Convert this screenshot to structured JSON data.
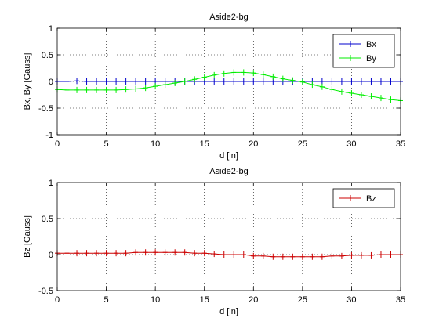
{
  "chart_data": [
    {
      "type": "line",
      "title": "Aside2-bg",
      "xlabel": "d [in]",
      "ylabel": "Bx, By [Gauss]",
      "xlim": [
        0,
        35
      ],
      "ylim": [
        -1,
        1
      ],
      "xticks": [
        0,
        5,
        10,
        15,
        20,
        25,
        30,
        35
      ],
      "yticks": [
        -1,
        -0.5,
        0,
        0.5,
        1
      ],
      "xtick_labels": [
        "0",
        "5",
        "10",
        "15",
        "20",
        "25",
        "30",
        "35"
      ],
      "ytick_labels": [
        "-1",
        "-0.5",
        "0",
        "0.5",
        "1"
      ],
      "grid": true,
      "legend_position": "top-right",
      "x": [
        0,
        1,
        2,
        3,
        4,
        5,
        6,
        7,
        8,
        9,
        10,
        11,
        12,
        13,
        14,
        15,
        16,
        17,
        18,
        19,
        20,
        21,
        22,
        23,
        24,
        25,
        26,
        27,
        28,
        29,
        30,
        31,
        32,
        33,
        34,
        35
      ],
      "series": [
        {
          "name": "Bx",
          "color": "#0000cc",
          "values": [
            0,
            0,
            0.01,
            0,
            0,
            0,
            0,
            0,
            0,
            0,
            0,
            0,
            0,
            0,
            0,
            0,
            0,
            0,
            0,
            0,
            0,
            0,
            0,
            0,
            0,
            0,
            0,
            0,
            0,
            0,
            0,
            0,
            0,
            0,
            0,
            0
          ]
        },
        {
          "name": "By",
          "color": "#00ee00",
          "values": [
            -0.15,
            -0.16,
            -0.16,
            -0.16,
            -0.16,
            -0.16,
            -0.16,
            -0.15,
            -0.14,
            -0.12,
            -0.09,
            -0.06,
            -0.03,
            0.0,
            0.04,
            0.08,
            0.12,
            0.15,
            0.17,
            0.17,
            0.16,
            0.13,
            0.09,
            0.05,
            0.02,
            -0.01,
            -0.06,
            -0.1,
            -0.15,
            -0.19,
            -0.22,
            -0.25,
            -0.28,
            -0.31,
            -0.34,
            -0.36
          ]
        }
      ]
    },
    {
      "type": "line",
      "title": "Aside2-bg",
      "xlabel": "d [in]",
      "ylabel": "Bz [Gauss]",
      "xlim": [
        0,
        35
      ],
      "ylim": [
        -0.5,
        1
      ],
      "xticks": [
        0,
        5,
        10,
        15,
        20,
        25,
        30,
        35
      ],
      "yticks": [
        -0.5,
        0,
        0.5,
        1
      ],
      "xtick_labels": [
        "0",
        "5",
        "10",
        "15",
        "20",
        "25",
        "30",
        "35"
      ],
      "ytick_labels": [
        "-0.5",
        "0",
        "0.5",
        "1"
      ],
      "grid": true,
      "legend_position": "top-right",
      "x": [
        0,
        1,
        2,
        3,
        4,
        5,
        6,
        7,
        8,
        9,
        10,
        11,
        12,
        13,
        14,
        15,
        16,
        17,
        18,
        19,
        20,
        21,
        22,
        23,
        24,
        25,
        26,
        27,
        28,
        29,
        30,
        31,
        32,
        33,
        34,
        35
      ],
      "series": [
        {
          "name": "Bz",
          "color": "#cc0000",
          "values": [
            0.02,
            0.02,
            0.02,
            0.02,
            0.02,
            0.02,
            0.02,
            0.02,
            0.03,
            0.03,
            0.03,
            0.03,
            0.03,
            0.03,
            0.02,
            0.02,
            0.01,
            0.0,
            0.0,
            0.0,
            -0.02,
            -0.02,
            -0.03,
            -0.03,
            -0.03,
            -0.03,
            -0.03,
            -0.03,
            -0.02,
            -0.02,
            -0.01,
            -0.01,
            -0.01,
            0.0,
            0.0,
            0.0
          ]
        }
      ]
    }
  ]
}
